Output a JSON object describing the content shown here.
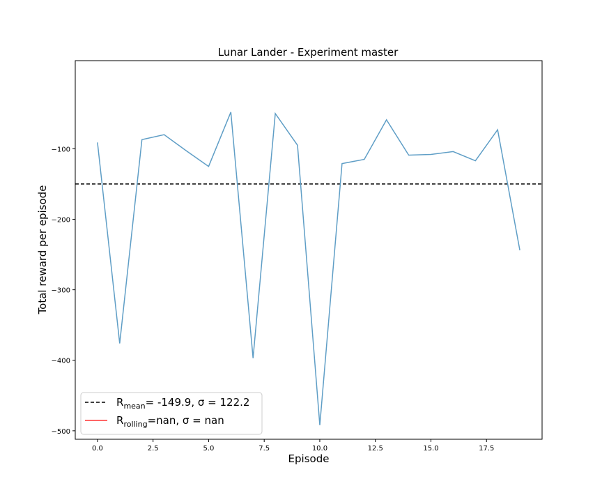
{
  "chart_data": {
    "type": "line",
    "title": "Lunar Lander - Experiment  master",
    "xlabel": "Episode",
    "ylabel": "Total reward per episode",
    "xlim": [
      -1.0,
      20.0
    ],
    "ylim": [
      -512,
      25
    ],
    "grid": false,
    "legend_placement": "lower-left",
    "x_ticks": [
      0.0,
      2.5,
      5.0,
      7.5,
      10.0,
      12.5,
      15.0,
      17.5
    ],
    "x_tick_labels": [
      "0.0",
      "2.5",
      "5.0",
      "7.5",
      "10.0",
      "12.5",
      "15.0",
      "17.5"
    ],
    "y_ticks": [
      -100,
      -200,
      -300,
      -400,
      -500
    ],
    "y_tick_labels": [
      "−100",
      "−200",
      "−300",
      "−400",
      "−500"
    ],
    "series": [
      {
        "color": "#5f9ec6",
        "x": [
          0,
          1,
          2,
          3,
          4,
          5,
          6,
          7,
          8,
          9,
          10,
          11,
          12,
          13,
          14,
          15,
          16,
          17,
          18,
          19
        ],
        "values": [
          -91,
          -376,
          -87,
          -80,
          -103,
          -125,
          -48,
          -397,
          -50,
          -95,
          -492,
          -121,
          -115,
          -59,
          -109,
          -108,
          -104,
          -117,
          -73,
          -244
        ]
      }
    ],
    "reference_lines": [
      {
        "type": "hline",
        "y": -149.9,
        "color": "#000000",
        "style": "dashed"
      }
    ],
    "legend": [
      {
        "label_main": "R",
        "label_sub": "mean",
        "label_rest": "=  -149.9, σ = 122.2",
        "color": "#000000",
        "style": "dashed"
      },
      {
        "label_main": "R",
        "label_sub": "rolling",
        "label_rest": "=nan, σ = nan",
        "color": "#ff3333",
        "style": "solid"
      }
    ]
  }
}
